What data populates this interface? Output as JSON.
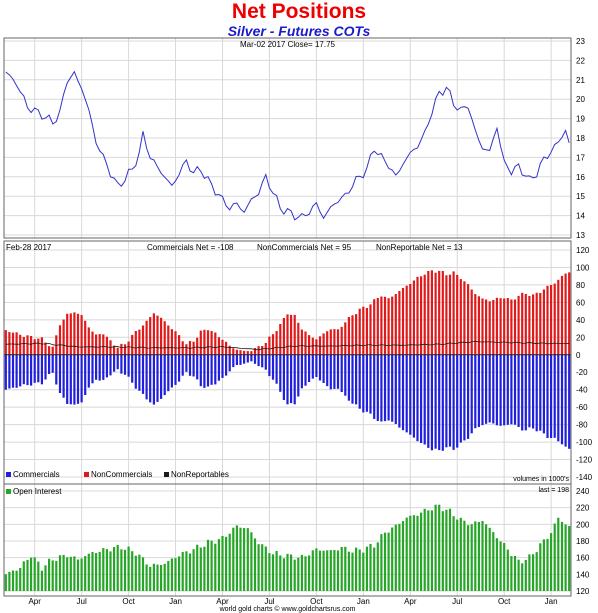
{
  "chart_data": {
    "type": "multi-panel",
    "title": "Net Positions",
    "subtitle": "Silver - Futures COTs",
    "footer": "world gold charts © www.goldchartsrus.com",
    "x_ticks": [
      "Apr",
      "Jul",
      "Oct",
      "Jan",
      "Apr",
      "Jul",
      "Oct",
      "Jan",
      "Apr",
      "Jul",
      "Oct",
      "Jan"
    ],
    "colors": {
      "price_line": "#3333cc",
      "commercials": "#1f1fdd",
      "noncommercials": "#e01a1a",
      "nonreportables": "#1a1a1a",
      "open_interest": "#26a626",
      "grid": "#d8d8d8",
      "frame": "#666666"
    },
    "price_panel": {
      "type": "line",
      "header": "Mar-02  2017   Close= 17.75",
      "ylim": [
        13,
        23
      ],
      "yticks": [
        13,
        14,
        15,
        16,
        17,
        18,
        19,
        20,
        21,
        22,
        23
      ],
      "close": 17.75,
      "anchors": [
        [
          0,
          21.4
        ],
        [
          3,
          20.8
        ],
        [
          6,
          19.6
        ],
        [
          10,
          19.2
        ],
        [
          13,
          18.8
        ],
        [
          15,
          19.3
        ],
        [
          17,
          21.0
        ],
        [
          19,
          21.3
        ],
        [
          21,
          20.6
        ],
        [
          23,
          19.4
        ],
        [
          25,
          17.8
        ],
        [
          27,
          17.0
        ],
        [
          29,
          16.2
        ],
        [
          31,
          15.5
        ],
        [
          33,
          15.9
        ],
        [
          35,
          16.4
        ],
        [
          37,
          17.2
        ],
        [
          38,
          18.2
        ],
        [
          40,
          17.0
        ],
        [
          42,
          16.5
        ],
        [
          44,
          16.0
        ],
        [
          46,
          15.5
        ],
        [
          48,
          16.2
        ],
        [
          50,
          16.8
        ],
        [
          52,
          16.2
        ],
        [
          54,
          16.4
        ],
        [
          56,
          15.8
        ],
        [
          58,
          15.3
        ],
        [
          60,
          14.8
        ],
        [
          62,
          14.4
        ],
        [
          64,
          14.6
        ],
        [
          66,
          14.2
        ],
        [
          68,
          14.8
        ],
        [
          70,
          15.2
        ],
        [
          72,
          16.0
        ],
        [
          74,
          15.2
        ],
        [
          76,
          14.4
        ],
        [
          78,
          14.2
        ],
        [
          80,
          14.0
        ],
        [
          82,
          13.9
        ],
        [
          84,
          14.2
        ],
        [
          86,
          14.6
        ],
        [
          88,
          13.9
        ],
        [
          90,
          14.4
        ],
        [
          92,
          14.8
        ],
        [
          94,
          15.0
        ],
        [
          96,
          15.6
        ],
        [
          98,
          16.0
        ],
        [
          100,
          16.4
        ],
        [
          102,
          17.5
        ],
        [
          104,
          17.0
        ],
        [
          106,
          16.6
        ],
        [
          108,
          16.0
        ],
        [
          110,
          16.7
        ],
        [
          112,
          17.2
        ],
        [
          114,
          17.6
        ],
        [
          116,
          18.2
        ],
        [
          118,
          19.4
        ],
        [
          120,
          20.3
        ],
        [
          122,
          20.6
        ],
        [
          124,
          19.8
        ],
        [
          126,
          19.4
        ],
        [
          128,
          19.7
        ],
        [
          130,
          18.3
        ],
        [
          132,
          17.5
        ],
        [
          134,
          17.3
        ],
        [
          136,
          18.6
        ],
        [
          137,
          17.6
        ],
        [
          138,
          16.7
        ],
        [
          140,
          16.3
        ],
        [
          142,
          16.5
        ],
        [
          144,
          16.1
        ],
        [
          145,
          15.8
        ],
        [
          147,
          16.2
        ],
        [
          149,
          16.9
        ],
        [
          151,
          17.3
        ],
        [
          153,
          17.8
        ],
        [
          155,
          18.4
        ],
        [
          156,
          17.75
        ]
      ]
    },
    "cot_panel": {
      "type": "bar",
      "header_date": "Feb-28  2017",
      "header_commercials": "Commercials Net = -108",
      "header_noncommercials": "NonCommercials Net = 95",
      "header_nonreportables": "NonReportable Net = 13",
      "ylim": [
        -140,
        120
      ],
      "yticks": [
        -140,
        -120,
        -100,
        -80,
        -60,
        -40,
        -20,
        0,
        20,
        40,
        60,
        80,
        100,
        120
      ],
      "series": [
        {
          "name": "Commercials",
          "anchors": [
            [
              0,
              -40
            ],
            [
              5,
              -35
            ],
            [
              10,
              -32
            ],
            [
              13,
              -20
            ],
            [
              15,
              -45
            ],
            [
              17,
              -55
            ],
            [
              19,
              -58
            ],
            [
              21,
              -54
            ],
            [
              23,
              -38
            ],
            [
              25,
              -28
            ],
            [
              27,
              -30
            ],
            [
              29,
              -22
            ],
            [
              31,
              -18
            ],
            [
              33,
              -22
            ],
            [
              35,
              -32
            ],
            [
              37,
              -42
            ],
            [
              39,
              -50
            ],
            [
              41,
              -58
            ],
            [
              43,
              -50
            ],
            [
              46,
              -38
            ],
            [
              48,
              -30
            ],
            [
              50,
              -20
            ],
            [
              52,
              -25
            ],
            [
              54,
              -35
            ],
            [
              56,
              -38
            ],
            [
              58,
              -32
            ],
            [
              60,
              -28
            ],
            [
              62,
              -18
            ],
            [
              64,
              -12
            ],
            [
              66,
              -10
            ],
            [
              68,
              -8
            ],
            [
              70,
              -12
            ],
            [
              72,
              -18
            ],
            [
              74,
              -28
            ],
            [
              76,
              -42
            ],
            [
              78,
              -58
            ],
            [
              80,
              -55
            ],
            [
              82,
              -40
            ],
            [
              84,
              -30
            ],
            [
              86,
              -26
            ],
            [
              88,
              -32
            ],
            [
              90,
              -40
            ],
            [
              92,
              -38
            ],
            [
              94,
              -48
            ],
            [
              96,
              -55
            ],
            [
              98,
              -62
            ],
            [
              100,
              -66
            ],
            [
              102,
              -72
            ],
            [
              104,
              -78
            ],
            [
              106,
              -74
            ],
            [
              108,
              -80
            ],
            [
              110,
              -86
            ],
            [
              112,
              -92
            ],
            [
              114,
              -98
            ],
            [
              116,
              -104
            ],
            [
              118,
              -108
            ],
            [
              120,
              -110
            ],
            [
              122,
              -106
            ],
            [
              124,
              -108
            ],
            [
              126,
              -102
            ],
            [
              128,
              -95
            ],
            [
              130,
              -85
            ],
            [
              132,
              -80
            ],
            [
              134,
              -78
            ],
            [
              136,
              -80
            ],
            [
              138,
              -82
            ],
            [
              140,
              -78
            ],
            [
              142,
              -84
            ],
            [
              144,
              -86
            ],
            [
              146,
              -84
            ],
            [
              148,
              -88
            ],
            [
              150,
              -94
            ],
            [
              152,
              -96
            ],
            [
              154,
              -102
            ],
            [
              156,
              -108
            ]
          ]
        },
        {
          "name": "NonCommercials",
          "anchors": [
            [
              0,
              28
            ],
            [
              5,
              22
            ],
            [
              10,
              18
            ],
            [
              13,
              8
            ],
            [
              15,
              35
            ],
            [
              17,
              46
            ],
            [
              19,
              49
            ],
            [
              21,
              45
            ],
            [
              23,
              32
            ],
            [
              25,
              22
            ],
            [
              27,
              25
            ],
            [
              29,
              15
            ],
            [
              31,
              9
            ],
            [
              33,
              12
            ],
            [
              35,
              22
            ],
            [
              37,
              30
            ],
            [
              39,
              38
            ],
            [
              41,
              48
            ],
            [
              43,
              42
            ],
            [
              46,
              30
            ],
            [
              48,
              22
            ],
            [
              50,
              12
            ],
            [
              52,
              16
            ],
            [
              54,
              26
            ],
            [
              56,
              30
            ],
            [
              58,
              24
            ],
            [
              60,
              18
            ],
            [
              62,
              10
            ],
            [
              64,
              6
            ],
            [
              66,
              4
            ],
            [
              68,
              5
            ],
            [
              70,
              9
            ],
            [
              72,
              14
            ],
            [
              74,
              24
            ],
            [
              76,
              34
            ],
            [
              78,
              48
            ],
            [
              80,
              44
            ],
            [
              82,
              30
            ],
            [
              84,
              22
            ],
            [
              86,
              18
            ],
            [
              88,
              24
            ],
            [
              90,
              30
            ],
            [
              92,
              28
            ],
            [
              94,
              38
            ],
            [
              96,
              45
            ],
            [
              98,
              52
            ],
            [
              100,
              55
            ],
            [
              102,
              62
            ],
            [
              104,
              68
            ],
            [
              106,
              64
            ],
            [
              108,
              70
            ],
            [
              110,
              76
            ],
            [
              112,
              82
            ],
            [
              114,
              88
            ],
            [
              116,
              93
            ],
            [
              118,
              96
            ],
            [
              120,
              96
            ],
            [
              122,
              92
            ],
            [
              124,
              94
            ],
            [
              126,
              88
            ],
            [
              128,
              80
            ],
            [
              130,
              70
            ],
            [
              132,
              64
            ],
            [
              134,
              62
            ],
            [
              136,
              64
            ],
            [
              138,
              66
            ],
            [
              140,
              62
            ],
            [
              142,
              68
            ],
            [
              144,
              70
            ],
            [
              146,
              68
            ],
            [
              148,
              72
            ],
            [
              150,
              78
            ],
            [
              152,
              82
            ],
            [
              154,
              90
            ],
            [
              156,
              95
            ]
          ]
        },
        {
          "name": "NonReportables",
          "anchors": [
            [
              0,
              12
            ],
            [
              10,
              13
            ],
            [
              20,
              9
            ],
            [
              30,
              9
            ],
            [
              40,
              8
            ],
            [
              50,
              8
            ],
            [
              60,
              9
            ],
            [
              70,
              6
            ],
            [
              80,
              10
            ],
            [
              90,
              10
            ],
            [
              100,
              11
            ],
            [
              110,
              11
            ],
            [
              120,
              12
            ],
            [
              130,
              15
            ],
            [
              140,
              14
            ],
            [
              150,
              13
            ],
            [
              156,
              13
            ]
          ]
        }
      ],
      "units_note": "volumes in 1000's"
    },
    "oi_panel": {
      "type": "bar",
      "series_name": "Open Interest",
      "last_label": "last = 198",
      "last": 198,
      "ylim": [
        120,
        240
      ],
      "yticks": [
        120,
        140,
        160,
        180,
        200,
        220,
        240
      ],
      "anchors": [
        [
          0,
          140
        ],
        [
          4,
          148
        ],
        [
          7,
          163
        ],
        [
          10,
          148
        ],
        [
          13,
          158
        ],
        [
          17,
          163
        ],
        [
          20,
          158
        ],
        [
          24,
          166
        ],
        [
          28,
          170
        ],
        [
          32,
          173
        ],
        [
          36,
          166
        ],
        [
          40,
          150
        ],
        [
          44,
          153
        ],
        [
          48,
          163
        ],
        [
          52,
          170
        ],
        [
          56,
          178
        ],
        [
          60,
          183
        ],
        [
          64,
          198
        ],
        [
          67,
          195
        ],
        [
          70,
          178
        ],
        [
          74,
          165
        ],
        [
          78,
          162
        ],
        [
          82,
          160
        ],
        [
          86,
          170
        ],
        [
          90,
          168
        ],
        [
          93,
          172
        ],
        [
          96,
          168
        ],
        [
          99,
          170
        ],
        [
          102,
          175
        ],
        [
          105,
          190
        ],
        [
          108,
          198
        ],
        [
          111,
          208
        ],
        [
          114,
          212
        ],
        [
          117,
          218
        ],
        [
          120,
          222
        ],
        [
          123,
          215
        ],
        [
          126,
          205
        ],
        [
          129,
          200
        ],
        [
          132,
          205
        ],
        [
          134,
          195
        ],
        [
          137,
          180
        ],
        [
          140,
          165
        ],
        [
          142,
          155
        ],
        [
          145,
          160
        ],
        [
          148,
          175
        ],
        [
          151,
          190
        ],
        [
          153,
          208
        ],
        [
          155,
          200
        ],
        [
          156,
          198
        ]
      ]
    },
    "legend": {
      "commercials": "Commercials",
      "noncommercials": "NonCommercials",
      "nonreportables": "NonReportables",
      "open_interest": "Open Interest"
    }
  }
}
